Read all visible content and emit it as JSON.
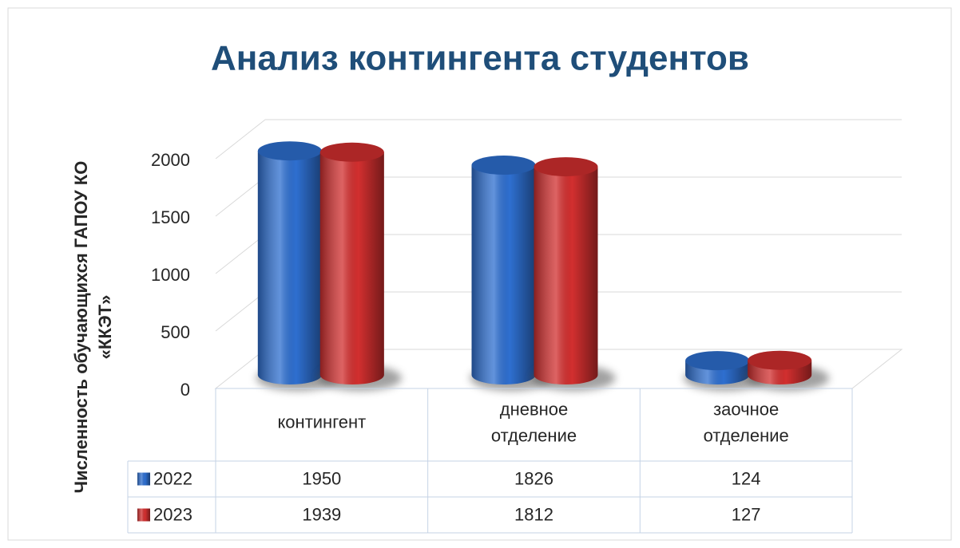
{
  "chart_data": {
    "type": "bar3d",
    "title": "Анализ контингента студентов",
    "y_axis_label": "Численность обучающихся ГАПОУ КО «ККЭТ»",
    "categories": [
      "контингент",
      "дневное отделение",
      "заочное отделение"
    ],
    "series": [
      {
        "name": "2022",
        "color": "#2e6fd0",
        "values": [
          1950,
          1826,
          124
        ]
      },
      {
        "name": "2023",
        "color": "#d22f2f",
        "values": [
          1939,
          1812,
          127
        ]
      }
    ],
    "ylim": [
      0,
      2000
    ],
    "yticks": [
      0,
      500,
      1000,
      1500,
      2000
    ],
    "grid": true,
    "data_table": true
  }
}
